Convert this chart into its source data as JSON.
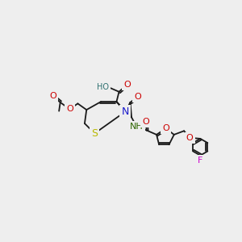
{
  "bg_color": "#eeeeee",
  "figsize": [
    3.0,
    3.0
  ],
  "dpi": 100,
  "bond_lw": 1.3,
  "bond_color": "#1a1a1a",
  "atom_bg": "#eeeeee",
  "atoms": {
    "S": {
      "color": "#b8b800"
    },
    "N": {
      "color": "#1a1acc"
    },
    "O": {
      "color": "#cc0000"
    },
    "HO": {
      "color": "#2e7070"
    },
    "NH": {
      "color": "#2e6600"
    },
    "F": {
      "color": "#cc00cc"
    }
  }
}
